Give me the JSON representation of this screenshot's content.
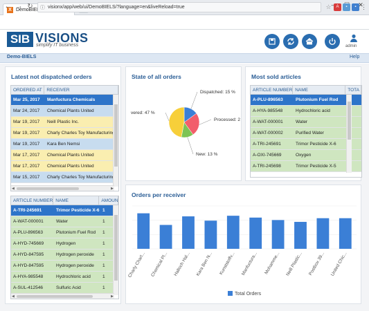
{
  "browser": {
    "tab_title": "DemoBIELS",
    "url": "visionx/app/web/ui/DemoBIELS/?language=en&liveReload=true"
  },
  "header": {
    "logo_left": "SIB",
    "logo_right": "VISIONS",
    "tagline": "simplify IT business",
    "user_label": "admin"
  },
  "menubar": {
    "app_name": "Demo-BIELS",
    "help": "Help"
  },
  "panels": {
    "orders": {
      "title": "Latest not dispatched orders",
      "cols": [
        "ORDERED AT",
        "RECEIVER"
      ],
      "rows": [
        [
          "Mar 25, 2017",
          "Manfuctura Chemicals"
        ],
        [
          "Mar 24, 2017",
          "Chemical Plants United"
        ],
        [
          "Mar 19, 2017",
          "Neill Plastic Inc."
        ],
        [
          "Mar 19, 2017",
          "Charly Charles Toy Manufacturing"
        ],
        [
          "Mar 19, 2017",
          "Kara Ben Nemsi"
        ],
        [
          "Mar 17, 2017",
          "Chemical Plants United"
        ],
        [
          "Mar 17, 2017",
          "Chemical Plants United"
        ],
        [
          "Mar 15, 2017",
          "Charly Charles Toy Manufacturing"
        ]
      ]
    },
    "articles": {
      "cols": [
        "ARTICLE NUMBER",
        "NAME",
        "AMOUNT"
      ],
      "rows": [
        [
          "A-TRI-245691",
          "Trimor Pesticide X-6",
          "1"
        ],
        [
          "A-WAT-000001",
          "Water",
          "1"
        ],
        [
          "A-PLU-896563",
          "Plutonium Fuel Rod",
          "1"
        ],
        [
          "A-HYD-745669",
          "Hydrogen",
          "1"
        ],
        [
          "A-HYD-847595",
          "Hydrogen peroxide",
          "1"
        ],
        [
          "A-HYD-847595",
          "Hydrogen peroxide",
          "1"
        ],
        [
          "A-HYA-985548",
          "Hydrochloric acid",
          "1"
        ],
        [
          "A-SUL-412546",
          "Sulfuric Acid",
          "1"
        ]
      ]
    },
    "state": {
      "title": "State of all orders"
    },
    "sold": {
      "title": "Most sold articles",
      "cols": [
        "ARTICLE NUMBER",
        "NAME",
        "TOTA"
      ],
      "rows": [
        [
          "A-PLU-896563",
          "Plutonium Fuel Rod"
        ],
        [
          "A-HYA-985548",
          "Hydrochloric acid"
        ],
        [
          "A-WAT-000001",
          "Water"
        ],
        [
          "A-WAT-000002",
          "Purified Water"
        ],
        [
          "A-TRI-245691",
          "Trimor Pesticide X-6"
        ],
        [
          "A-OXI-745669",
          "Oxygen"
        ],
        [
          "A-TRI-245698",
          "Trimor Pesticide X-5"
        ]
      ]
    },
    "receiver": {
      "title": "Orders per receiver"
    }
  },
  "chart_data": [
    {
      "type": "pie",
      "title": "State of all orders",
      "slices": [
        {
          "label": "Dispatched: 15 %",
          "value": 15,
          "color": "#3b7fd6"
        },
        {
          "label": "Processed: 2",
          "value": 25,
          "color": "#f25e6b"
        },
        {
          "label": "New: 13 %",
          "value": 13,
          "color": "#7dc454"
        },
        {
          "label": "vered: 47 %",
          "value": 47,
          "color": "#f7cf3a"
        }
      ]
    },
    {
      "type": "bar",
      "title": "Orders per receiver",
      "categories": [
        "Charly Charl...",
        "Chemical Pl...",
        "Haltoch Hal...",
        "Kara Ben N...",
        "Kunststoffv...",
        "Manfuctura...",
        "Mohamme...",
        "Neill Plastic...",
        "Postbox 39...",
        "United Chic..."
      ],
      "series": [
        {
          "name": "Total Orders",
          "values": [
            58,
            39,
            53,
            46,
            54,
            51,
            47,
            44,
            50,
            50
          ],
          "color": "#3b7fd6"
        }
      ],
      "ylim": [
        0,
        70
      ]
    }
  ]
}
